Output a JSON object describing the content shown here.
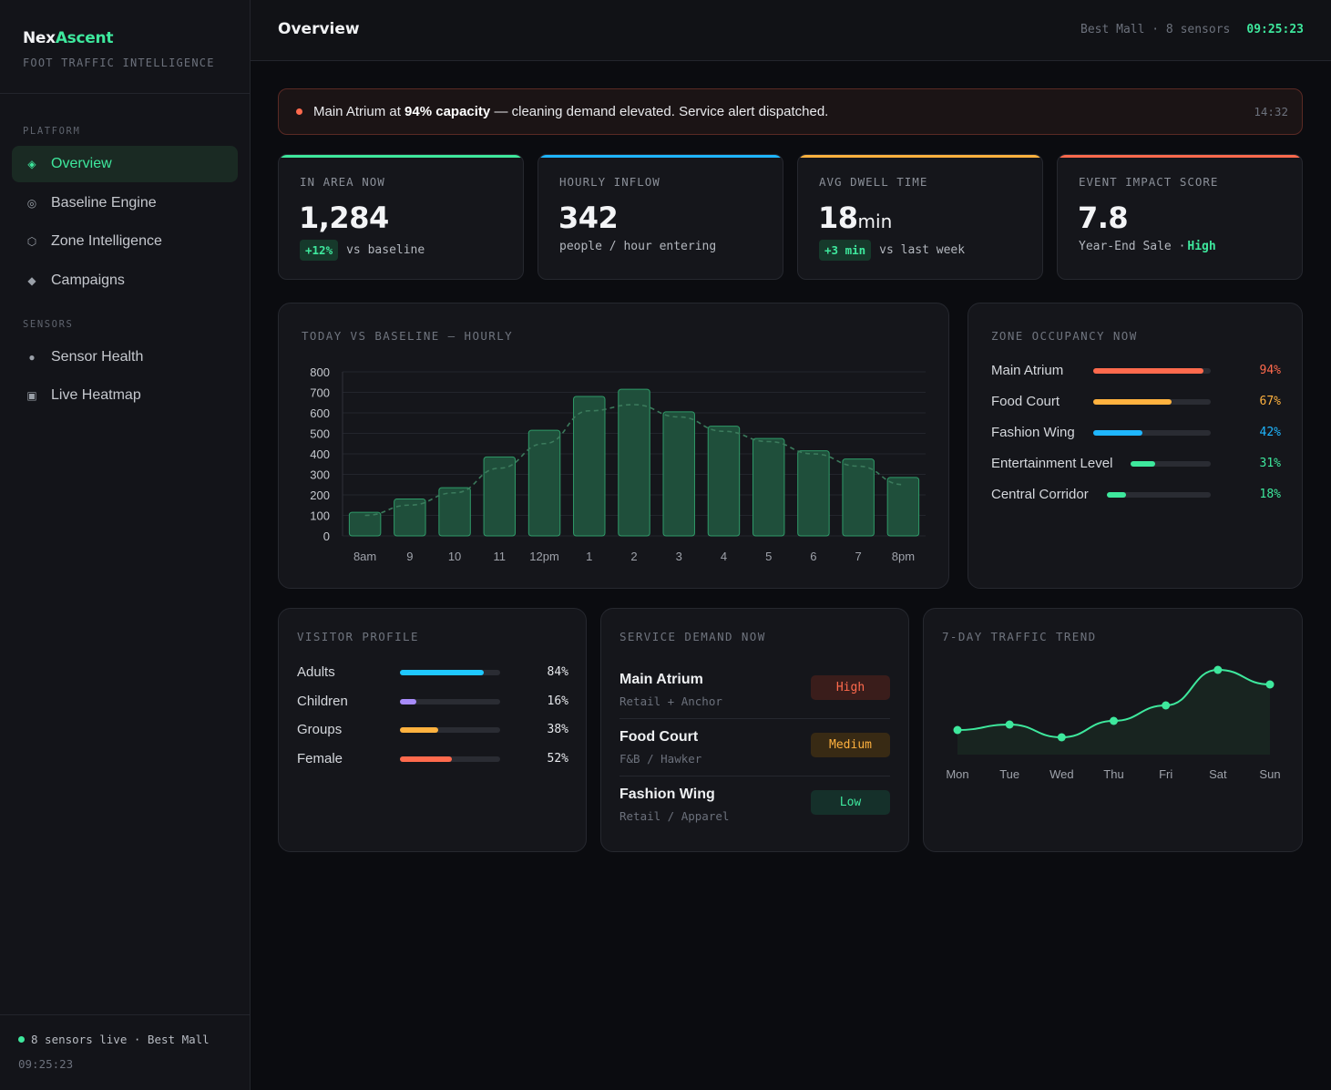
{
  "brand": {
    "name_part1": "Nex",
    "name_part2": "Ascent",
    "subtitle": "FOOT TRAFFIC INTELLIGENCE"
  },
  "sidebar": {
    "sections": [
      {
        "title": "PLATFORM",
        "items": [
          {
            "label": "Overview",
            "icon": "diamond-dot-icon",
            "active": true
          },
          {
            "label": "Baseline Engine",
            "icon": "target-icon"
          },
          {
            "label": "Zone Intelligence",
            "icon": "hexagon-icon"
          },
          {
            "label": "Campaigns",
            "icon": "diamond-icon"
          }
        ]
      },
      {
        "title": "SENSORS",
        "items": [
          {
            "label": "Sensor Health",
            "icon": "dot-icon"
          },
          {
            "label": "Live Heatmap",
            "icon": "square-icon"
          }
        ]
      }
    ],
    "footer": {
      "status": "8 sensors live · Best Mall",
      "time": "09:25:23"
    }
  },
  "header": {
    "title": "Overview",
    "meta": "Best Mall · 8 sensors",
    "clock": "09:25:23"
  },
  "alert": {
    "prefix": "Main Atrium at ",
    "bold": "94% capacity",
    "suffix": " — cleaning demand elevated. Service alert dispatched.",
    "time": "14:32"
  },
  "kpis": [
    {
      "label": "IN AREA NOW",
      "value": "1,284",
      "unit": "",
      "pill": "+12%",
      "sub": "vs baseline",
      "accent": "#3ee89d"
    },
    {
      "label": "HOURLY INFLOW",
      "value": "342",
      "unit": "",
      "pill": "",
      "sub": "people / hour entering",
      "accent": "#1fb6ff"
    },
    {
      "label": "AVG DWELL TIME",
      "value": "18",
      "unit": "min",
      "pill": "+3 min",
      "sub": "vs last week",
      "accent": "#ffb23f"
    },
    {
      "label": "EVENT IMPACT SCORE",
      "value": "7.8",
      "unit": "",
      "pill": "",
      "sub": "Year-End Sale · ",
      "sub_highlight": "High",
      "accent": "#ff6a4d"
    }
  ],
  "hourly_chart": {
    "title": "TODAY VS BASELINE — HOURLY",
    "chart_data": {
      "type": "bar",
      "categories": [
        "8am",
        "9",
        "10",
        "11",
        "12pm",
        "1",
        "2",
        "3",
        "4",
        "5",
        "6",
        "7",
        "8pm"
      ],
      "series": [
        {
          "values": [
            115,
            180,
            235,
            385,
            515,
            680,
            715,
            605,
            535,
            475,
            415,
            375,
            285
          ]
        },
        {
          "type": "line",
          "dashed": true,
          "values": [
            100,
            150,
            210,
            330,
            450,
            610,
            640,
            580,
            510,
            460,
            400,
            340,
            250
          ]
        }
      ],
      "ylim": [
        0,
        800
      ],
      "yticks": [
        0,
        100,
        200,
        300,
        400,
        500,
        600,
        700,
        800
      ],
      "grid": true,
      "colors": {
        "bar_fill": "#1f4f3b",
        "bar_stroke": "#2f9a68",
        "line": "#3b7a5c"
      }
    }
  },
  "zone_occupancy": {
    "title": "ZONE OCCUPANCY NOW",
    "zones": [
      {
        "name": "Main Atrium",
        "value": 94,
        "label": "94%",
        "color": "#ff6a4d"
      },
      {
        "name": "Food Court",
        "value": 67,
        "label": "67%",
        "color": "#ffb23f"
      },
      {
        "name": "Fashion Wing",
        "value": 42,
        "label": "42%",
        "color": "#1fb6ff"
      },
      {
        "name": "Entertainment Level",
        "value": 31,
        "label": "31%",
        "color": "#3ee89d"
      },
      {
        "name": "Central Corridor",
        "value": 18,
        "label": "18%",
        "color": "#3ee89d"
      }
    ]
  },
  "visitor_profile": {
    "title": "VISITOR PROFILE",
    "rows": [
      {
        "name": "Adults",
        "value": 84,
        "label": "84%",
        "color": "#1fc8ff"
      },
      {
        "name": "Children",
        "value": 16,
        "label": "16%",
        "color": "#a78bfa"
      },
      {
        "name": "Groups",
        "value": 38,
        "label": "38%",
        "color": "#ffb23f"
      },
      {
        "name": "Female",
        "value": 52,
        "label": "52%",
        "color": "#ff6a4d"
      }
    ]
  },
  "service_demand": {
    "title": "SERVICE DEMAND NOW",
    "rows": [
      {
        "name": "Main Atrium",
        "category": "Retail + Anchor",
        "level": "High",
        "color": "#ff6a4d",
        "bg": "#3a1d1b"
      },
      {
        "name": "Food Court",
        "category": "F&B / Hawker",
        "level": "Medium",
        "color": "#ffb23f",
        "bg": "#382a14"
      },
      {
        "name": "Fashion Wing",
        "category": "Retail / Apparel",
        "level": "Low",
        "color": "#3ee89d",
        "bg": "#15302a"
      }
    ]
  },
  "weekly_trend": {
    "title": "7-DAY TRAFFIC TREND",
    "chart_data": {
      "type": "area",
      "categories": [
        "Mon",
        "Tue",
        "Wed",
        "Thu",
        "Fri",
        "Sat",
        "Sun"
      ],
      "values": [
        27,
        33,
        19,
        37,
        54,
        93,
        77
      ],
      "color": "#3ee89d"
    }
  }
}
